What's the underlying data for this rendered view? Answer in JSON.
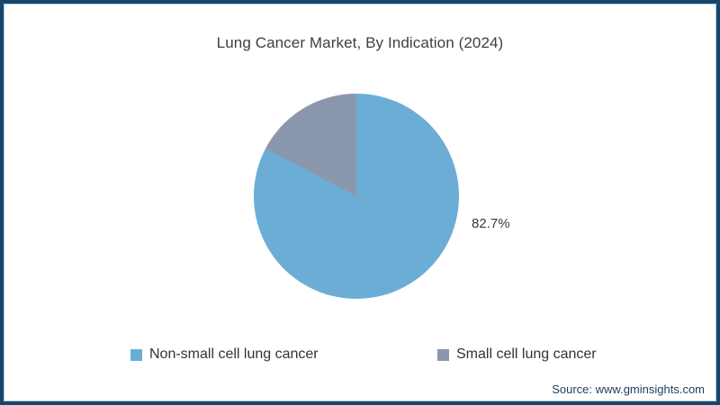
{
  "page": {
    "title": "Lung Cancer Market, By Indication (2024)",
    "source_text": "Source: www.gminsights.com"
  },
  "colors": {
    "frame_border": "#16466b",
    "frame_inner_line": "#b7c9d9",
    "background": "#ffffff",
    "title_text": "#3f3f3f",
    "legend_text": "#333333",
    "data_label_text": "#3a3a3a",
    "source_text": "#1d3e5c",
    "nsclc_slice": "#6cadd5",
    "sclc_slice": "#8b97ad"
  },
  "chart_data": {
    "type": "pie",
    "title": "Lung Cancer Market, By Indication (2024)",
    "slices": [
      {
        "label": "Non-small cell lung cancer",
        "value": 82.7,
        "color": "#6cadd5"
      },
      {
        "label": "Small cell lung cancer",
        "value": 17.3,
        "color": "#8b97ad"
      }
    ],
    "data_labels": [
      "82.7%"
    ],
    "values_unit": "%",
    "start_angle_deg": 0,
    "direction": "clockwise",
    "legend_position": "bottom"
  },
  "pie_label": "82.7%",
  "legend": {
    "items": [
      {
        "label": "Non-small cell lung cancer"
      },
      {
        "label": "Small cell lung cancer"
      }
    ]
  }
}
